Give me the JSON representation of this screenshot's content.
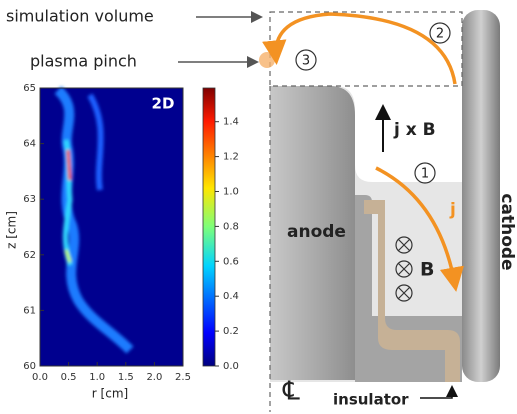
{
  "labels": {
    "simulation_volume": "simulation volume",
    "plasma_pinch": "plasma pinch",
    "region_2": "2",
    "region_3": "3",
    "region_1": "1",
    "jxb": "j x B",
    "j": "j",
    "anode": "anode",
    "cathode": "cathode",
    "b": "B",
    "centerline": "℄",
    "insulator": "insulator"
  },
  "plot": {
    "badge": "2D",
    "x_label": "r [cm]",
    "y_label": "z [cm]",
    "x_ticks": [
      "0.0",
      "0.5",
      "1.0",
      "1.5",
      "2.0",
      "2.5"
    ],
    "y_ticks": [
      "60",
      "61",
      "62",
      "63",
      "64",
      "65"
    ],
    "colorbar_ticks": [
      "0.0",
      "0.2",
      "0.4",
      "0.6",
      "0.8",
      "1.0",
      "1.2",
      "1.4"
    ]
  }
}
